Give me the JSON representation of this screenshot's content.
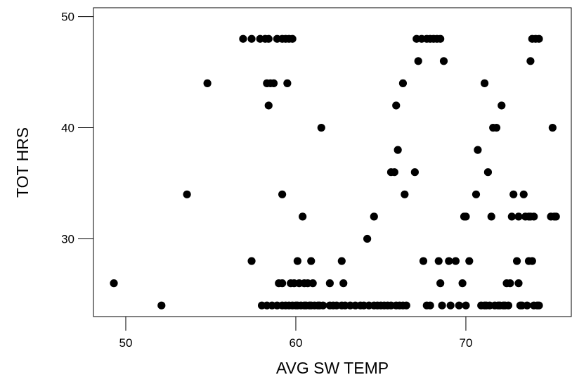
{
  "chart_data": {
    "type": "scatter",
    "xlabel": "AVG SW TEMP",
    "ylabel": "TOT HRS",
    "xlim": [
      48.1,
      76.2
    ],
    "ylim": [
      23.0,
      50.8
    ],
    "xticks": [
      50,
      60,
      70
    ],
    "yticks": [
      30,
      40,
      50
    ],
    "x_tick_labels": [
      "50",
      "60",
      "70"
    ],
    "y_tick_labels": [
      "30",
      "40",
      "50"
    ],
    "grid": false,
    "marker_color": "#000000",
    "points": [
      [
        49.3,
        26
      ],
      [
        52.1,
        24
      ],
      [
        53.6,
        34
      ],
      [
        54.8,
        44
      ],
      [
        56.9,
        48
      ],
      [
        57.4,
        48
      ],
      [
        57.4,
        28
      ],
      [
        57.9,
        48
      ],
      [
        58.0,
        24
      ],
      [
        58.2,
        48
      ],
      [
        58.3,
        24
      ],
      [
        58.3,
        44
      ],
      [
        58.4,
        42
      ],
      [
        58.4,
        48
      ],
      [
        58.5,
        44
      ],
      [
        58.6,
        24
      ],
      [
        58.7,
        44
      ],
      [
        58.9,
        48
      ],
      [
        58.9,
        24
      ],
      [
        59.0,
        26
      ],
      [
        59.2,
        34
      ],
      [
        59.2,
        48
      ],
      [
        59.2,
        26
      ],
      [
        59.2,
        24
      ],
      [
        59.4,
        48
      ],
      [
        59.4,
        24
      ],
      [
        59.5,
        44
      ],
      [
        59.6,
        48
      ],
      [
        59.6,
        24
      ],
      [
        59.7,
        26
      ],
      [
        59.8,
        48
      ],
      [
        59.8,
        24
      ],
      [
        59.9,
        26
      ],
      [
        60.0,
        24
      ],
      [
        60.1,
        28
      ],
      [
        60.1,
        24
      ],
      [
        60.2,
        26
      ],
      [
        60.3,
        24
      ],
      [
        60.4,
        32
      ],
      [
        60.5,
        26
      ],
      [
        60.5,
        24
      ],
      [
        60.6,
        24
      ],
      [
        60.7,
        26
      ],
      [
        60.8,
        24
      ],
      [
        60.9,
        28
      ],
      [
        60.9,
        24
      ],
      [
        61.0,
        26
      ],
      [
        61.1,
        24
      ],
      [
        61.3,
        24
      ],
      [
        61.4,
        24
      ],
      [
        61.5,
        40
      ],
      [
        61.6,
        24
      ],
      [
        62.0,
        26
      ],
      [
        62.0,
        24
      ],
      [
        62.2,
        24
      ],
      [
        62.4,
        24
      ],
      [
        62.7,
        28
      ],
      [
        62.7,
        24
      ],
      [
        62.8,
        26
      ],
      [
        62.9,
        24
      ],
      [
        63.2,
        24
      ],
      [
        63.5,
        24
      ],
      [
        63.8,
        24
      ],
      [
        64.0,
        24
      ],
      [
        64.2,
        30
      ],
      [
        64.3,
        24
      ],
      [
        64.6,
        32
      ],
      [
        64.6,
        24
      ],
      [
        64.8,
        24
      ],
      [
        65.0,
        24
      ],
      [
        65.2,
        24
      ],
      [
        65.4,
        24
      ],
      [
        65.6,
        36
      ],
      [
        65.6,
        24
      ],
      [
        65.8,
        36
      ],
      [
        65.9,
        42
      ],
      [
        65.9,
        24
      ],
      [
        66.0,
        38
      ],
      [
        66.1,
        24
      ],
      [
        66.3,
        44
      ],
      [
        66.3,
        24
      ],
      [
        66.4,
        34
      ],
      [
        66.5,
        24
      ],
      [
        67.0,
        36
      ],
      [
        67.1,
        48
      ],
      [
        67.2,
        46
      ],
      [
        67.4,
        48
      ],
      [
        67.5,
        28
      ],
      [
        67.7,
        24
      ],
      [
        67.7,
        48
      ],
      [
        67.9,
        24
      ],
      [
        67.9,
        48
      ],
      [
        68.1,
        48
      ],
      [
        68.3,
        48
      ],
      [
        68.4,
        28
      ],
      [
        68.5,
        48
      ],
      [
        68.5,
        26
      ],
      [
        68.6,
        24
      ],
      [
        68.7,
        46
      ],
      [
        69.0,
        28
      ],
      [
        69.1,
        24
      ],
      [
        69.4,
        28
      ],
      [
        69.6,
        24
      ],
      [
        69.8,
        26
      ],
      [
        69.9,
        32
      ],
      [
        70.0,
        32
      ],
      [
        70.0,
        24
      ],
      [
        70.2,
        28
      ],
      [
        70.6,
        34
      ],
      [
        70.7,
        38
      ],
      [
        70.9,
        24
      ],
      [
        71.1,
        44
      ],
      [
        71.1,
        24
      ],
      [
        71.2,
        24
      ],
      [
        71.3,
        36
      ],
      [
        71.4,
        24
      ],
      [
        71.5,
        32
      ],
      [
        71.6,
        40
      ],
      [
        71.7,
        24
      ],
      [
        71.8,
        40
      ],
      [
        71.9,
        24
      ],
      [
        72.0,
        24
      ],
      [
        72.1,
        42
      ],
      [
        72.2,
        24
      ],
      [
        72.3,
        24
      ],
      [
        72.4,
        26
      ],
      [
        72.5,
        24
      ],
      [
        72.6,
        26
      ],
      [
        72.7,
        32
      ],
      [
        72.8,
        34
      ],
      [
        73.0,
        28
      ],
      [
        73.1,
        26
      ],
      [
        73.1,
        32
      ],
      [
        73.2,
        24
      ],
      [
        73.3,
        24
      ],
      [
        73.4,
        34
      ],
      [
        73.5,
        32
      ],
      [
        73.6,
        24
      ],
      [
        73.7,
        32
      ],
      [
        73.7,
        28
      ],
      [
        73.8,
        46
      ],
      [
        73.8,
        32
      ],
      [
        73.9,
        28
      ],
      [
        73.9,
        48
      ],
      [
        74.0,
        24
      ],
      [
        74.0,
        32
      ],
      [
        74.1,
        48
      ],
      [
        74.2,
        24
      ],
      [
        74.3,
        48
      ],
      [
        74.3,
        24
      ],
      [
        75.0,
        32
      ],
      [
        75.1,
        40
      ],
      [
        75.2,
        32
      ],
      [
        75.3,
        32
      ]
    ]
  }
}
